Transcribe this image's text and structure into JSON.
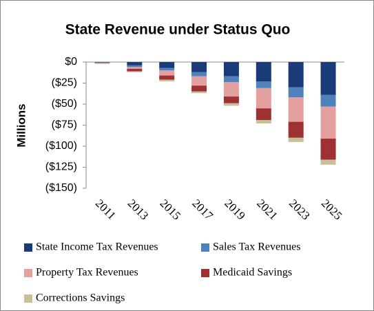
{
  "chart_data": {
    "type": "stacked_bar",
    "title": "State Revenue under Status Quo",
    "y_label": "Millions",
    "categories": [
      "2011",
      "2013",
      "2015",
      "2017",
      "2019",
      "2021",
      "2023",
      "2025"
    ],
    "series": [
      {
        "name": "State Income Tax Revenues",
        "color": "#1b3a78",
        "values": [
          -0.5,
          -4,
          -7,
          -12,
          -17,
          -23,
          -30,
          -39
        ]
      },
      {
        "name": "Sales Tax Revenues",
        "color": "#4f81bd",
        "values": [
          -0.3,
          -2,
          -3,
          -5,
          -7,
          -8,
          -12,
          -14
        ]
      },
      {
        "name": "Property Tax Revenues",
        "color": "#e4a09f",
        "values": [
          -0.5,
          -2,
          -6,
          -11,
          -17,
          -24,
          -29,
          -38
        ]
      },
      {
        "name": "Medicaid Savings",
        "color": "#9e3232",
        "values": [
          -0.3,
          -3,
          -5,
          -7,
          -8,
          -14,
          -19,
          -25
        ]
      },
      {
        "name": "Corrections Savings",
        "color": "#c8bf9b",
        "values": [
          -0.5,
          -1,
          -2,
          -2,
          -3,
          -4,
          -5,
          -6
        ]
      }
    ],
    "ylim": [
      -150,
      0
    ],
    "yticks": [
      {
        "value": 0,
        "label": "$0"
      },
      {
        "value": -25,
        "label": "($25)"
      },
      {
        "value": -50,
        "label": "($50)"
      },
      {
        "value": -75,
        "label": "($75)"
      },
      {
        "value": -100,
        "label": "($100)"
      },
      {
        "value": -125,
        "label": "($125)"
      },
      {
        "value": -150,
        "label": "($150)"
      }
    ]
  }
}
